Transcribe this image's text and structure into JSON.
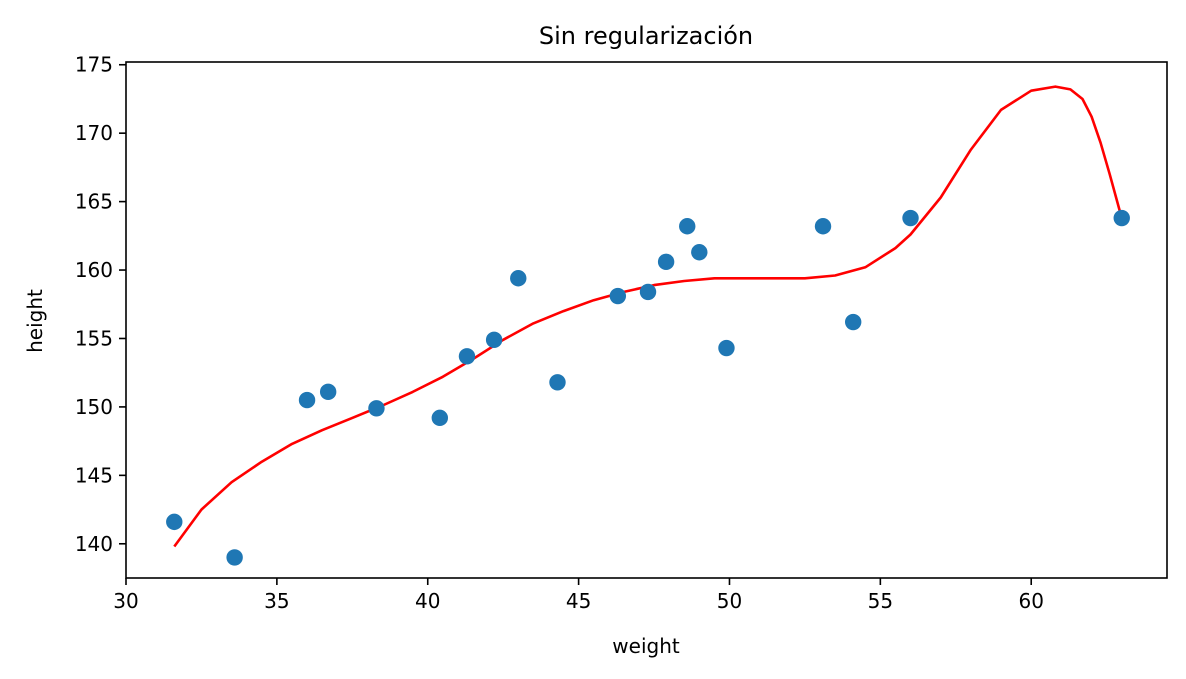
{
  "chart_data": {
    "type": "scatter",
    "title": "Sin regularización",
    "xlabel": "weight",
    "ylabel": "height",
    "xlim": [
      30.0,
      64.5
    ],
    "ylim": [
      137.5,
      175.2
    ],
    "xticks": [
      "30",
      "35",
      "40",
      "45",
      "50",
      "55",
      "60"
    ],
    "yticks": [
      "140",
      "145",
      "150",
      "155",
      "160",
      "165",
      "170",
      "175"
    ],
    "grid": false,
    "scatter": {
      "color": "#1f77b4",
      "points": [
        [
          31.6,
          141.6
        ],
        [
          33.6,
          139.0
        ],
        [
          36.0,
          150.5
        ],
        [
          36.7,
          151.1
        ],
        [
          38.3,
          149.9
        ],
        [
          40.4,
          149.2
        ],
        [
          41.3,
          153.7
        ],
        [
          42.2,
          154.9
        ],
        [
          43.0,
          159.4
        ],
        [
          44.3,
          151.8
        ],
        [
          46.3,
          158.1
        ],
        [
          47.3,
          158.4
        ],
        [
          47.9,
          160.6
        ],
        [
          48.6,
          163.2
        ],
        [
          49.0,
          161.3
        ],
        [
          49.9,
          154.3
        ],
        [
          53.1,
          163.2
        ],
        [
          54.1,
          156.2
        ],
        [
          56.0,
          163.8
        ],
        [
          63.0,
          163.8
        ]
      ]
    },
    "fit_line": {
      "color": "#ff0000",
      "x": [
        31.6,
        32.5,
        33.5,
        34.5,
        35.5,
        36.5,
        37.5,
        38.5,
        39.5,
        40.5,
        41.5,
        42.5,
        43.5,
        44.5,
        45.5,
        46.5,
        47.5,
        48.5,
        49.5,
        50.5,
        51.5,
        52.5,
        53.5,
        54.5,
        55.5,
        56.0,
        57.0,
        58.0,
        59.0,
        60.0,
        60.8,
        61.3,
        61.7,
        62.0,
        62.3,
        62.6,
        63.0
      ],
      "y": [
        139.8,
        142.5,
        144.5,
        146.0,
        147.3,
        148.3,
        149.2,
        150.1,
        151.1,
        152.2,
        153.5,
        154.9,
        156.1,
        157.0,
        157.8,
        158.4,
        158.9,
        159.2,
        159.4,
        159.4,
        159.4,
        159.4,
        159.6,
        160.2,
        161.6,
        162.6,
        165.3,
        168.8,
        171.7,
        173.1,
        173.4,
        173.2,
        172.5,
        171.2,
        169.3,
        167.0,
        163.8
      ]
    }
  }
}
